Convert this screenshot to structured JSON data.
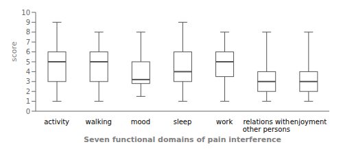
{
  "chart_data": {
    "type": "box",
    "categories": [
      "activity",
      "walking",
      "mood",
      "sleep",
      "work",
      "relations with\nother persons",
      "enjoyment"
    ],
    "whislo": [
      1.0,
      1.0,
      1.5,
      1.0,
      1.0,
      1.0,
      1.0
    ],
    "q1": [
      3.0,
      3.0,
      2.8,
      3.0,
      3.5,
      2.0,
      2.0
    ],
    "med": [
      5.0,
      5.0,
      3.2,
      4.0,
      5.0,
      3.0,
      3.0
    ],
    "q3": [
      6.0,
      6.0,
      5.0,
      6.0,
      6.0,
      4.0,
      4.0
    ],
    "whishi": [
      9.0,
      8.0,
      8.0,
      9.0,
      8.0,
      8.0,
      8.0
    ],
    "xlabel": "Seven functional domains of pain interference",
    "ylabel": "score",
    "ylim": [
      0,
      10
    ],
    "yticks": [
      0,
      1,
      2,
      3,
      4,
      5,
      6,
      7,
      8,
      9,
      10
    ],
    "color": "#555555",
    "grid": false
  }
}
